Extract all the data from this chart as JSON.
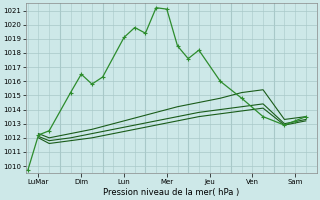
{
  "background_color": "#cde8e8",
  "grid_color": "#a8c8c8",
  "line_color_dark": "#1a5c1a",
  "line_color_medium": "#2d8c2d",
  "x_day_labels": [
    "LuMar",
    "Dim",
    "Lun",
    "Mer",
    "Jeu",
    "Ven",
    "Sam"
  ],
  "x_day_positions": [
    0.5,
    2.5,
    4.5,
    6.5,
    8.5,
    10.5,
    12.5
  ],
  "x_vline_positions": [
    1.5,
    3.5,
    5.5,
    7.5,
    9.5,
    11.5
  ],
  "ylim": [
    1009.5,
    1021.5
  ],
  "yticks": [
    1010,
    1011,
    1012,
    1013,
    1014,
    1015,
    1016,
    1017,
    1018,
    1019,
    1020,
    1021
  ],
  "xlim": [
    -0.1,
    13.5
  ],
  "xlabel": "Pression niveau de la mer( hPa )",
  "series1_x": [
    0,
    0.5,
    1.0,
    2.0,
    2.5,
    3.0,
    3.5,
    4.5,
    5.0,
    5.5,
    6.0,
    6.5,
    7.0,
    7.5,
    8.0,
    9.0,
    10.0,
    11.0,
    12.0,
    12.5,
    13.0
  ],
  "series1_y": [
    1009.7,
    1012.2,
    1012.5,
    1015.2,
    1016.5,
    1015.8,
    1016.3,
    1019.1,
    1019.8,
    1019.4,
    1021.2,
    1021.1,
    1018.5,
    1017.6,
    1018.2,
    1016.0,
    1014.8,
    1013.5,
    1012.9,
    1013.2,
    1013.5
  ],
  "series2_x": [
    0.5,
    1.0,
    2.0,
    3.0,
    4.0,
    5.0,
    6.0,
    7.0,
    8.0,
    9.0,
    10.0,
    11.0,
    12.0,
    13.0
  ],
  "series2_y": [
    1012.3,
    1012.0,
    1012.3,
    1012.6,
    1013.0,
    1013.4,
    1013.8,
    1014.2,
    1014.5,
    1014.8,
    1015.2,
    1015.4,
    1013.3,
    1013.5
  ],
  "series3_x": [
    0.5,
    1.0,
    2.0,
    3.0,
    4.0,
    5.0,
    6.0,
    7.0,
    8.0,
    9.0,
    10.0,
    11.0,
    12.0,
    13.0
  ],
  "series3_y": [
    1012.1,
    1011.8,
    1012.0,
    1012.3,
    1012.6,
    1012.9,
    1013.2,
    1013.5,
    1013.8,
    1014.0,
    1014.2,
    1014.4,
    1013.0,
    1013.3
  ],
  "series4_x": [
    0.5,
    1.0,
    2.0,
    3.0,
    4.0,
    5.0,
    6.0,
    7.0,
    8.0,
    9.0,
    10.0,
    11.0,
    12.0,
    13.0
  ],
  "series4_y": [
    1012.0,
    1011.6,
    1011.8,
    1012.0,
    1012.3,
    1012.6,
    1012.9,
    1013.2,
    1013.5,
    1013.7,
    1013.9,
    1014.1,
    1012.9,
    1013.2
  ]
}
